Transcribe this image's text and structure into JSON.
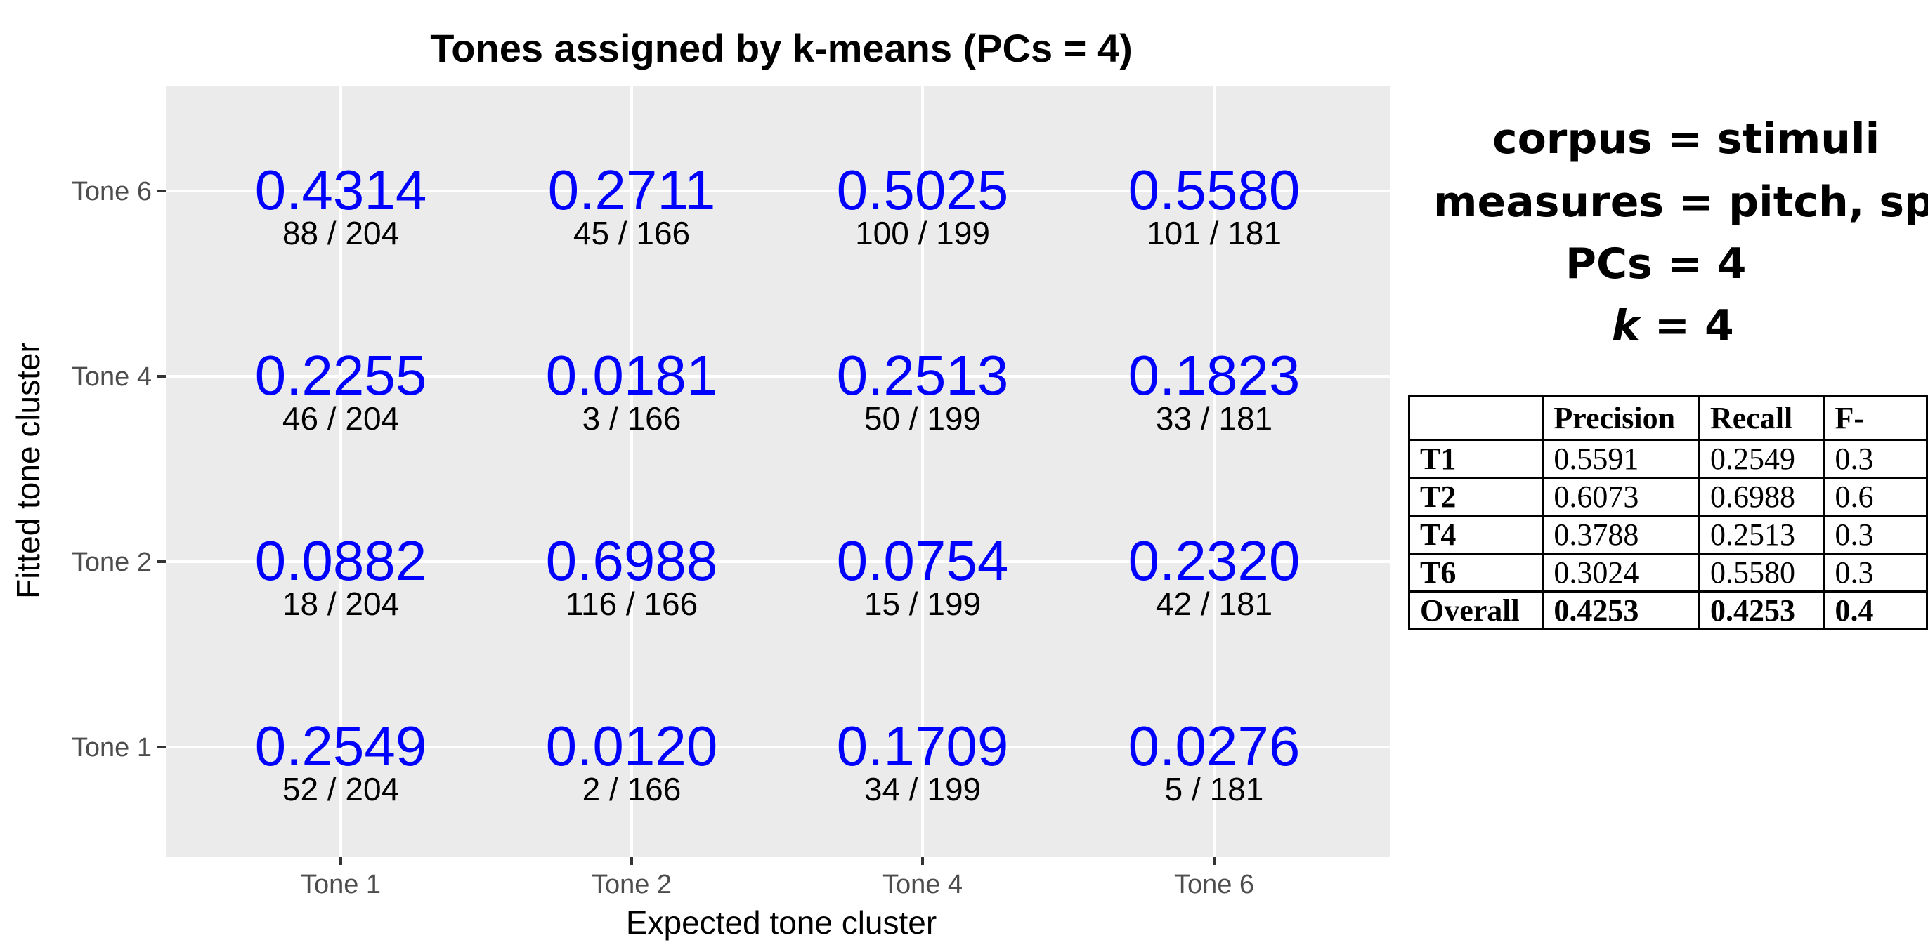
{
  "chart_data": {
    "type": "heatmap",
    "title": "Tones assigned by k-means (PCs = 4)",
    "xlabel": "Expected tone cluster",
    "ylabel": "Fitted tone cluster",
    "x_categories": [
      "Tone 1",
      "Tone 2",
      "Tone 4",
      "Tone 6"
    ],
    "y_categories": [
      "Tone 1",
      "Tone 2",
      "Tone 4",
      "Tone 6"
    ],
    "grid": true,
    "colors": {
      "panel_background": "#ebebeb",
      "gridline": "#ffffff",
      "value_text": "#0000ff",
      "count_text": "#000000",
      "axis_text": "#4d4d4d"
    },
    "cells": [
      {
        "x": "Tone 1",
        "y": "Tone 6",
        "value": "0.4314",
        "count": "88 / 204"
      },
      {
        "x": "Tone 2",
        "y": "Tone 6",
        "value": "0.2711",
        "count": "45 / 166"
      },
      {
        "x": "Tone 4",
        "y": "Tone 6",
        "value": "0.5025",
        "count": "100 / 199"
      },
      {
        "x": "Tone 6",
        "y": "Tone 6",
        "value": "0.5580",
        "count": "101 / 181"
      },
      {
        "x": "Tone 1",
        "y": "Tone 4",
        "value": "0.2255",
        "count": "46 / 204"
      },
      {
        "x": "Tone 2",
        "y": "Tone 4",
        "value": "0.0181",
        "count": "3 / 166"
      },
      {
        "x": "Tone 4",
        "y": "Tone 4",
        "value": "0.2513",
        "count": "50 / 199"
      },
      {
        "x": "Tone 6",
        "y": "Tone 4",
        "value": "0.1823",
        "count": "33 / 181"
      },
      {
        "x": "Tone 1",
        "y": "Tone 2",
        "value": "0.0882",
        "count": "18 / 204"
      },
      {
        "x": "Tone 2",
        "y": "Tone 2",
        "value": "0.6988",
        "count": "116 / 166"
      },
      {
        "x": "Tone 4",
        "y": "Tone 2",
        "value": "0.0754",
        "count": "15 / 199"
      },
      {
        "x": "Tone 6",
        "y": "Tone 2",
        "value": "0.2320",
        "count": "42 / 181"
      },
      {
        "x": "Tone 1",
        "y": "Tone 1",
        "value": "0.2549",
        "count": "52 / 204"
      },
      {
        "x": "Tone 2",
        "y": "Tone 1",
        "value": "0.0120",
        "count": "2 / 166"
      },
      {
        "x": "Tone 4",
        "y": "Tone 1",
        "value": "0.1709",
        "count": "34 / 199"
      },
      {
        "x": "Tone 6",
        "y": "Tone 1",
        "value": "0.0276",
        "count": "5 / 181"
      }
    ]
  },
  "annotations": {
    "corpus_line": "corpus = stimuli",
    "measures_line": "measures = pitch, spec.",
    "pcs_line": "PCs = 4",
    "k_italic": "k",
    "k_rest": " = 4"
  },
  "metrics_table": {
    "headers": [
      "",
      "Precision",
      "Recall",
      "F-"
    ],
    "rows": [
      [
        "T1",
        "0.5591",
        "0.2549",
        "0.3"
      ],
      [
        "T2",
        "0.6073",
        "0.6988",
        "0.6"
      ],
      [
        "T4",
        "0.3788",
        "0.2513",
        "0.3"
      ],
      [
        "T6",
        "0.3024",
        "0.5580",
        "0.3"
      ],
      [
        "Overall",
        "0.4253",
        "0.4253",
        "0.4"
      ]
    ]
  }
}
